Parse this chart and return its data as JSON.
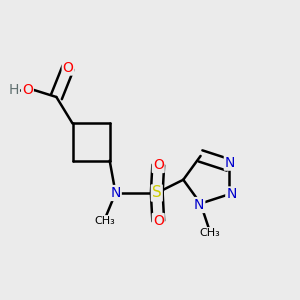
{
  "background_color": "#ebebeb",
  "atom_colors": {
    "C": "#000000",
    "N": "#0000cc",
    "O": "#ff0000",
    "S": "#cccc00",
    "H": "#607070"
  },
  "bond_color": "#000000",
  "bond_width": 1.8,
  "font_size": 10
}
